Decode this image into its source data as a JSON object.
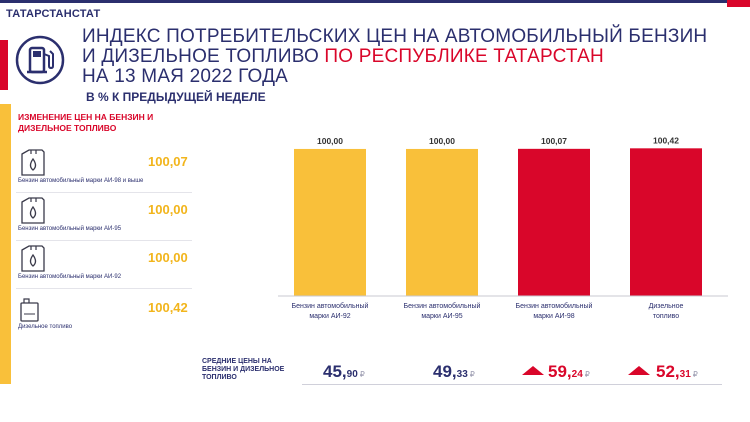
{
  "header": {
    "agency": "ТАТАРСТАНСТАТ",
    "title_line1": "ИНДЕКС ПОТРЕБИТЕЛЬСКИХ ЦЕН НА АВТОМОБИЛЬНЫЙ БЕНЗИН",
    "title_line2_start": "И ДИЗЕЛЬНОЕ ТОПЛИВО ",
    "title_line2_red": "ПО РЕСПУБЛИКЕ ТАТАРСТАН",
    "title_line3": "НА 13 МАЯ 2022 ГОДА",
    "subtitle": "В % К ПРЕДЫДУЩЕЙ НЕДЕЛЕ",
    "logo_icon": "fuel-pump-icon"
  },
  "colors": {
    "navy": "#2b2f6e",
    "red": "#d9062a",
    "yellow": "#f9c03a",
    "value_yellow": "#f2b51c"
  },
  "left_panel": {
    "heading": "ИЗМЕНЕНИЕ ЦЕН НА БЕНЗИН И ДИЗЕЛЬНОЕ ТОПЛИВО",
    "items": [
      {
        "label": "Бензин автомобильный  марки АИ-98 и выше",
        "value": "100,07",
        "icon": "jerrycan-icon"
      },
      {
        "label": "Бензин автомобильный  марки АИ-95",
        "value": "100,00",
        "icon": "jerrycan-icon"
      },
      {
        "label": "Бензин автомобильный  марки АИ-92",
        "value": "100,00",
        "icon": "jerrycan-icon"
      },
      {
        "label": "Дизельное  топливо",
        "value": "100,42",
        "icon": "canister-icon"
      }
    ]
  },
  "chart_data": {
    "type": "bar",
    "categories": [
      "Бензин автомобильный марки АИ-92",
      "Бензин автомобильный марки АИ-95",
      "Бензин автомобильный марки АИ-98",
      "Дизельное топливо"
    ],
    "category_lines": [
      [
        "Бензин автомобильный",
        "марки АИ-92"
      ],
      [
        "Бензин автомобильный",
        "марки АИ-95"
      ],
      [
        "Бензин автомобильный",
        "марки АИ-98"
      ],
      [
        "Дизельное",
        "топливо"
      ]
    ],
    "values": [
      100.0,
      100.0,
      100.07,
      100.42
    ],
    "value_labels": [
      "100,00",
      "100,00",
      "100,07",
      "100,42"
    ],
    "bar_colors": [
      "#f9c03a",
      "#f9c03a",
      "#d9062a",
      "#d9062a"
    ],
    "ylim": [
      0,
      102
    ],
    "grid": false,
    "legend": "none"
  },
  "averages": {
    "label": "СРЕДНИЕ ЦЕНЫ НА БЕНЗИН И ДИЗЕЛЬНОЕ ТОПЛИВО",
    "currency": "₽",
    "items": [
      {
        "whole": "45,",
        "fraction": "90",
        "up": false
      },
      {
        "whole": "49,",
        "fraction": "33",
        "up": false
      },
      {
        "whole": "59,",
        "fraction": "24",
        "up": true
      },
      {
        "whole": "52,",
        "fraction": "31",
        "up": true
      }
    ]
  }
}
